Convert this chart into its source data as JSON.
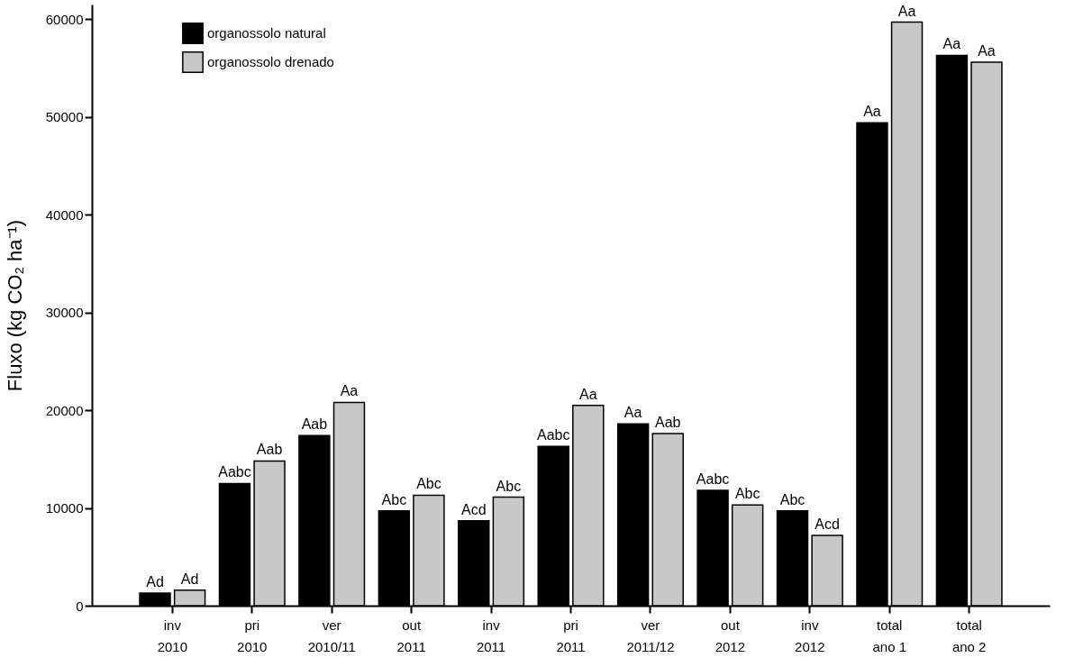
{
  "chart_data": {
    "type": "bar",
    "ylabel": "Fluxo (kg CO₂ ha⁻¹)",
    "categories": [
      "inv\n2010",
      "pri\n2010",
      "ver\n2010/11",
      "out\n2011",
      "inv\n2011",
      "pri\n2011",
      "ver\n2011/12",
      "out\n2012",
      "inv\n2012",
      "total\nano 1",
      "total\nano 2"
    ],
    "series": [
      {
        "name": "organossolo natural",
        "color": "#000000",
        "values": [
          1300,
          12500,
          17400,
          9700,
          8700,
          16300,
          18600,
          11800,
          9700,
          49400,
          56300
        ],
        "value_labels": [
          "Ad",
          "Aabc",
          "Aab",
          "Abc",
          "Acd",
          "Aabc",
          "Aa",
          "Aabc",
          "Abc",
          "Aa",
          "Aa"
        ]
      },
      {
        "name": "organossolo drenado",
        "color": "#c8c8c8",
        "values": [
          1600,
          14800,
          20800,
          11300,
          11100,
          20500,
          17600,
          10300,
          7200,
          59700,
          55600
        ],
        "value_labels": [
          "Ad",
          "Aab",
          "Aa",
          "Abc",
          "Abc",
          "Aa",
          "Aab",
          "Abc",
          "Acd",
          "Aa",
          "Aa"
        ]
      }
    ],
    "ylim": [
      0,
      61500
    ],
    "yticks": [
      0,
      10000,
      20000,
      30000,
      40000,
      50000,
      60000
    ],
    "grid": false,
    "legend": "top left"
  }
}
